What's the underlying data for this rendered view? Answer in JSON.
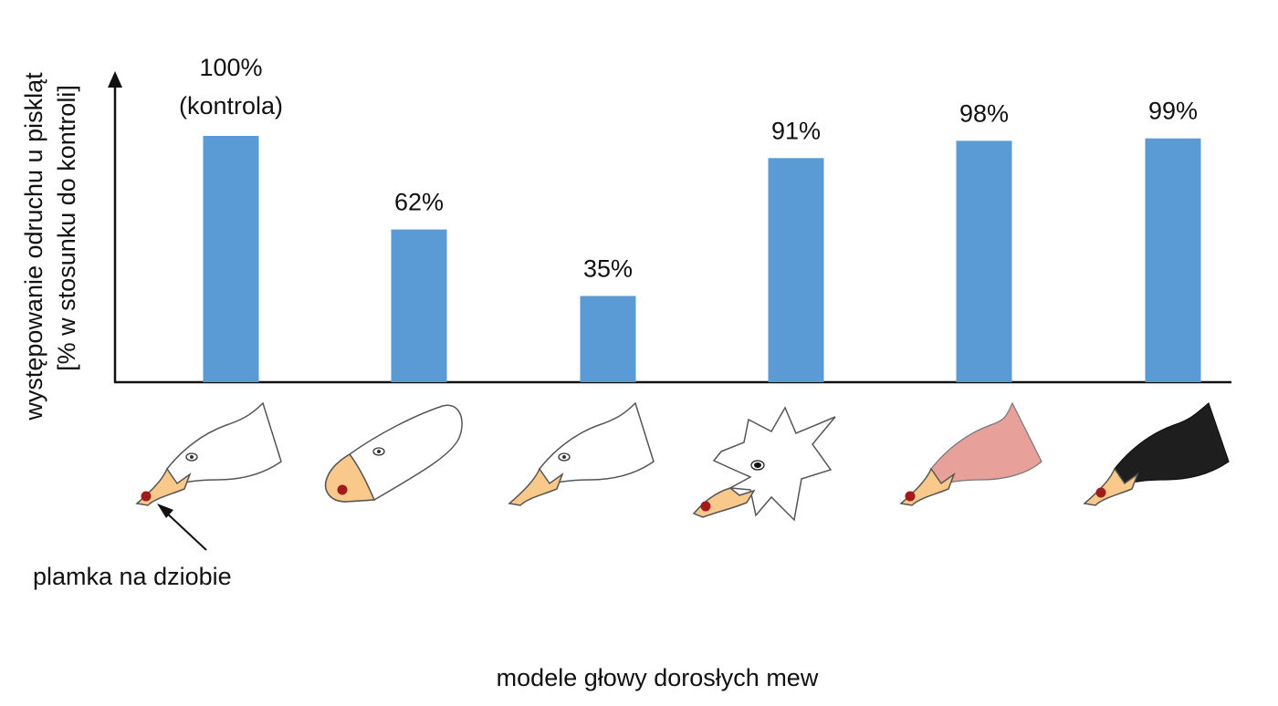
{
  "chart_data": {
    "type": "bar",
    "categories": [
      "",
      "",
      "",
      "",
      "",
      ""
    ],
    "values": [
      100,
      62,
      35,
      91,
      98,
      99
    ],
    "data_labels": [
      "100%",
      "62%",
      "35%",
      "91%",
      "98%",
      "99%"
    ],
    "first_bar_note": "(kontrola)",
    "ylabel_line1": "występowanie odruchu u piskląt",
    "ylabel_line2": "[% w stosunku do kontroli]",
    "xlabel": "modele głowy dorosłych mew",
    "ylim": [
      0,
      100
    ],
    "grid": false,
    "bar_color": "#5b9bd5",
    "annotation": "plamka na dziobie",
    "category_icons": [
      {
        "name": "gull-head-white-icon",
        "head_fill": "#ffffff",
        "beak_fill": "#f9c98b",
        "spot_fill": "#a31a1a"
      },
      {
        "name": "oval-head-icon",
        "head_fill": "#ffffff",
        "beak_fill": "#f9c98b",
        "spot_fill": "#a31a1a"
      },
      {
        "name": "gull-head-white-icon",
        "head_fill": "#ffffff",
        "beak_fill": "#f9c98b",
        "spot_fill": "#a31a1a"
      },
      {
        "name": "star-head-icon",
        "head_fill": "#ffffff",
        "beak_fill": "#f9c98b",
        "spot_fill": "#a31a1a"
      },
      {
        "name": "gull-head-pink-icon",
        "head_fill": "#e8a09b",
        "beak_fill": "#f9c98b",
        "spot_fill": "#a31a1a"
      },
      {
        "name": "gull-head-black-icon",
        "head_fill": "#1e1e1e",
        "beak_fill": "#f9c98b",
        "spot_fill": "#a31a1a"
      }
    ]
  }
}
